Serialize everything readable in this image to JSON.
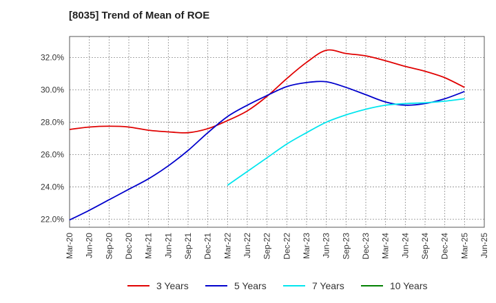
{
  "chart_data": {
    "type": "line",
    "title": "[8035]  Trend of Mean of ROE",
    "xlabel": "",
    "ylabel": "",
    "x_ticks": [
      "Mar-20",
      "Jun-20",
      "Sep-20",
      "Dec-20",
      "Mar-21",
      "Jun-21",
      "Sep-21",
      "Dec-21",
      "Mar-22",
      "Jun-22",
      "Sep-22",
      "Dec-22",
      "Mar-23",
      "Jun-23",
      "Sep-23",
      "Dec-23",
      "Mar-24",
      "Jun-24",
      "Sep-24",
      "Dec-24",
      "Mar-25",
      "Jun-25"
    ],
    "y_ticks": [
      22.0,
      24.0,
      26.0,
      28.0,
      30.0,
      32.0
    ],
    "y_tick_labels": [
      "22.0%",
      "24.0%",
      "26.0%",
      "28.0%",
      "30.0%",
      "32.0%"
    ],
    "ylim": [
      21.5,
      33.3
    ],
    "grid": true,
    "legend_position": "bottom",
    "series": [
      {
        "name": "3 Years",
        "color": "#e00000",
        "start_index": 0,
        "values": [
          27.55,
          27.7,
          27.75,
          27.7,
          27.5,
          27.4,
          27.35,
          27.6,
          28.1,
          28.7,
          29.6,
          30.7,
          31.7,
          32.45,
          32.25,
          32.1,
          31.8,
          31.45,
          31.15,
          30.75,
          30.15
        ]
      },
      {
        "name": "5 Years",
        "color": "#0000cc",
        "start_index": 0,
        "values": [
          21.95,
          22.55,
          23.2,
          23.85,
          24.5,
          25.3,
          26.25,
          27.35,
          28.35,
          29.05,
          29.65,
          30.2,
          30.45,
          30.5,
          30.15,
          29.7,
          29.25,
          29.05,
          29.15,
          29.45,
          29.9
        ]
      },
      {
        "name": "7 Years",
        "color": "#00e5ee",
        "start_index": 8,
        "values": [
          24.1,
          24.95,
          25.8,
          26.65,
          27.35,
          28.0,
          28.45,
          28.8,
          29.05,
          29.15,
          29.2,
          29.3,
          29.45
        ]
      },
      {
        "name": "10 Years",
        "color": "#008000",
        "start_index": 0,
        "values": []
      }
    ]
  }
}
